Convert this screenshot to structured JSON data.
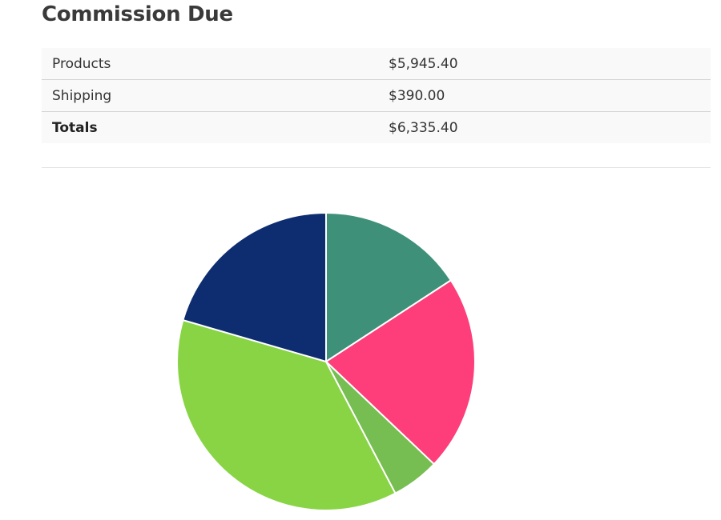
{
  "page": {
    "title": "Commission Due"
  },
  "summary": {
    "rows": [
      {
        "label": "Products",
        "value": "$5,945.40"
      },
      {
        "label": "Shipping",
        "value": "$390.00"
      },
      {
        "label": "Totals",
        "value": "$6,335.40"
      }
    ]
  },
  "chart_data": {
    "type": "pie",
    "title": "",
    "legend": "none",
    "slices": [
      {
        "value": 15.8,
        "color": "#3e9079"
      },
      {
        "value": 21.3,
        "color": "#fe3d7b"
      },
      {
        "value": 5.2,
        "color": "#76bd52"
      },
      {
        "value": 37.2,
        "color": "#88d445"
      },
      {
        "value": 20.5,
        "color": "#0e2d70"
      }
    ]
  }
}
